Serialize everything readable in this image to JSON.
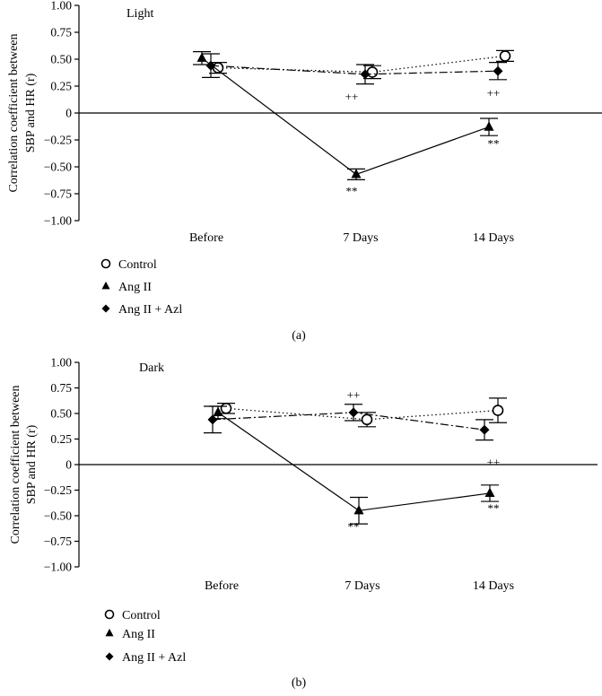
{
  "chart_data": [
    {
      "type": "line",
      "panel_label": "(a)",
      "title": "Light",
      "ylabel_line1": "Correlation coefficient between",
      "ylabel_line2": "SBP and HR (r)",
      "xlabel": "",
      "categories": [
        "Before",
        "7 Days",
        "14 Days"
      ],
      "ylim": [
        -1.0,
        1.0
      ],
      "yticks": [
        1.0,
        0.75,
        0.5,
        0.25,
        0,
        -0.25,
        -0.5,
        -0.75,
        -1.0
      ],
      "ytick_labels": [
        "1.00",
        "0.75",
        "0.50",
        "0.25",
        "0",
        "−0.25",
        "−0.50",
        "−0.75",
        "−1.00"
      ],
      "series": [
        {
          "name": "Control",
          "marker": "circle-open",
          "line": "dotted",
          "values": [
            0.42,
            0.38,
            0.53
          ],
          "errors": [
            0.05,
            0.06,
            0.05
          ]
        },
        {
          "name": "Ang II",
          "marker": "triangle",
          "line": "solid",
          "values": [
            0.51,
            -0.57,
            -0.13
          ],
          "errors": [
            0.06,
            0.05,
            0.08
          ]
        },
        {
          "name": "Ang II + Azl",
          "marker": "diamond",
          "line": "dashdot",
          "values": [
            0.44,
            0.36,
            0.39
          ],
          "errors": [
            0.11,
            0.09,
            0.08
          ]
        }
      ],
      "annotations": [
        {
          "category": "7 Days",
          "value": -0.72,
          "text": "**"
        },
        {
          "category": "7 Days",
          "value": 0.16,
          "text": "++"
        },
        {
          "category": "14 Days",
          "value": -0.28,
          "text": "**"
        },
        {
          "category": "14 Days",
          "value": 0.19,
          "text": "++"
        }
      ],
      "legend": [
        {
          "label": "Control",
          "marker": "circle-open"
        },
        {
          "label": "Ang II",
          "marker": "triangle"
        },
        {
          "label": "Ang II + Azl",
          "marker": "diamond"
        }
      ]
    },
    {
      "type": "line",
      "panel_label": "(b)",
      "title": "Dark",
      "ylabel_line1": "Correlation coefficient between",
      "ylabel_line2": "SBP and HR (r)",
      "xlabel": "",
      "categories": [
        "Before",
        "7 Days",
        "14 Days"
      ],
      "ylim": [
        -1.0,
        1.0
      ],
      "yticks": [
        1.0,
        0.75,
        0.5,
        0.25,
        0,
        -0.25,
        -0.5,
        -0.75,
        -1.0
      ],
      "ytick_labels": [
        "1.00",
        "0.75",
        "0.50",
        "0.25",
        "0",
        "−0.25",
        "−0.50",
        "−0.75",
        "−1.00"
      ],
      "series": [
        {
          "name": "Control",
          "marker": "circle-open",
          "line": "dotted",
          "values": [
            0.55,
            0.44,
            0.53
          ],
          "errors": [
            0.05,
            0.07,
            0.12
          ]
        },
        {
          "name": "Ang II",
          "marker": "triangle",
          "line": "solid",
          "values": [
            0.51,
            -0.45,
            -0.28
          ],
          "errors": [
            0.06,
            0.13,
            0.08
          ]
        },
        {
          "name": "Ang II + Azl",
          "marker": "diamond",
          "line": "dashdot",
          "values": [
            0.44,
            0.51,
            0.34
          ],
          "errors": [
            0.13,
            0.08,
            0.1
          ]
        }
      ],
      "annotations": [
        {
          "category": "7 Days",
          "value": -0.6,
          "text": "**"
        },
        {
          "category": "7 Days",
          "value": 0.69,
          "text": "++"
        },
        {
          "category": "14 Days",
          "value": -0.42,
          "text": "**"
        },
        {
          "category": "14 Days",
          "value": 0.03,
          "text": "++"
        }
      ],
      "legend": [
        {
          "label": "Control",
          "marker": "circle-open"
        },
        {
          "label": "Ang II",
          "marker": "triangle"
        },
        {
          "label": "Ang II + Azl",
          "marker": "diamond"
        }
      ]
    }
  ]
}
